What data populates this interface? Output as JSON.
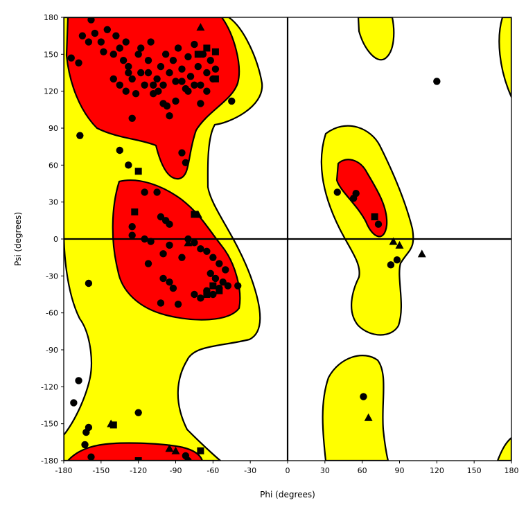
{
  "chart_data": {
    "type": "scatter",
    "title": "",
    "xlabel": "Phi (degrees)",
    "ylabel": "Psi (degrees)",
    "xlim": [
      -180,
      180
    ],
    "ylim": [
      -180,
      180
    ],
    "xticks": [
      -180,
      -150,
      -120,
      -90,
      -60,
      -30,
      0,
      30,
      60,
      90,
      120,
      150,
      180
    ],
    "yticks": [
      180,
      150,
      120,
      90,
      60,
      30,
      0,
      -30,
      -60,
      -90,
      -120,
      -150,
      -180
    ],
    "grid": false,
    "legend": "none",
    "colors": {
      "favoured_region": "#ff0000",
      "allowed_region": "#ffff00",
      "markers": "#000000"
    },
    "series": [
      {
        "marker": "circle",
        "points": [
          [
            -174,
            147
          ],
          [
            -168,
            143
          ],
          [
            -165,
            165
          ],
          [
            -160,
            160
          ],
          [
            -158,
            178
          ],
          [
            -155,
            167
          ],
          [
            -150,
            160
          ],
          [
            -148,
            152
          ],
          [
            -145,
            170
          ],
          [
            -140,
            150
          ],
          [
            -138,
            165
          ],
          [
            -135,
            155
          ],
          [
            -132,
            145
          ],
          [
            -130,
            160
          ],
          [
            -128,
            140
          ],
          [
            -125,
            130
          ],
          [
            -120,
            150
          ],
          [
            -118,
            135
          ],
          [
            -115,
            125
          ],
          [
            -112,
            145
          ],
          [
            -110,
            160
          ],
          [
            -108,
            118
          ],
          [
            -105,
            130
          ],
          [
            -102,
            140
          ],
          [
            -100,
            125
          ],
          [
            -98,
            150
          ],
          [
            -95,
            135
          ],
          [
            -92,
            145
          ],
          [
            -90,
            128
          ],
          [
            -88,
            155
          ],
          [
            -85,
            138
          ],
          [
            -82,
            122
          ],
          [
            -80,
            148
          ],
          [
            -78,
            132
          ],
          [
            -75,
            158
          ],
          [
            -72,
            140
          ],
          [
            -70,
            125
          ],
          [
            -68,
            150
          ],
          [
            -65,
            135
          ],
          [
            -62,
            145
          ],
          [
            -60,
            130
          ],
          [
            -58,
            138
          ],
          [
            -140,
            130
          ],
          [
            -135,
            125
          ],
          [
            -130,
            120
          ],
          [
            -128,
            135
          ],
          [
            -122,
            118
          ],
          [
            -118,
            155
          ],
          [
            -112,
            135
          ],
          [
            -108,
            125
          ],
          [
            -104,
            120
          ],
          [
            -100,
            110
          ],
          [
            -97,
            108
          ],
          [
            -95,
            100
          ],
          [
            -90,
            112
          ],
          [
            -85,
            128
          ],
          [
            -80,
            120
          ],
          [
            -75,
            125
          ],
          [
            -70,
            110
          ],
          [
            -65,
            120
          ],
          [
            -45,
            112
          ],
          [
            -125,
            98
          ],
          [
            -167,
            84
          ],
          [
            -135,
            72
          ],
          [
            -128,
            60
          ],
          [
            -85,
            70
          ],
          [
            -82,
            62
          ],
          [
            -115,
            38
          ],
          [
            -105,
            38
          ],
          [
            -102,
            18
          ],
          [
            -98,
            15
          ],
          [
            -95,
            12
          ],
          [
            -125,
            10
          ],
          [
            -125,
            3
          ],
          [
            -115,
            0
          ],
          [
            -110,
            -2
          ],
          [
            -100,
            -12
          ],
          [
            -95,
            -5
          ],
          [
            -85,
            -15
          ],
          [
            -80,
            0
          ],
          [
            -75,
            -3
          ],
          [
            -70,
            -8
          ],
          [
            -65,
            -10
          ],
          [
            -60,
            -15
          ],
          [
            -55,
            -20
          ],
          [
            -50,
            -25
          ],
          [
            -62,
            -28
          ],
          [
            -58,
            -32
          ],
          [
            -52,
            -35
          ],
          [
            -48,
            -38
          ],
          [
            -65,
            -42
          ],
          [
            -60,
            -45
          ],
          [
            -55,
            -40
          ],
          [
            -70,
            -48
          ],
          [
            -75,
            -45
          ],
          [
            -95,
            -35
          ],
          [
            -92,
            -40
          ],
          [
            -100,
            -32
          ],
          [
            -102,
            -52
          ],
          [
            -88,
            -53
          ],
          [
            -112,
            -20
          ],
          [
            -40,
            -38
          ],
          [
            -160,
            -36
          ],
          [
            -168,
            -115
          ],
          [
            -172,
            -133
          ],
          [
            -120,
            -141
          ],
          [
            -160,
            -153
          ],
          [
            -162,
            -157
          ],
          [
            -163,
            -167
          ],
          [
            -158,
            -177
          ],
          [
            -82,
            -176
          ],
          [
            -80,
            -180
          ],
          [
            40,
            38
          ],
          [
            53,
            33
          ],
          [
            55,
            37
          ],
          [
            73,
            12
          ],
          [
            83,
            -21
          ],
          [
            88,
            -17
          ],
          [
            120,
            128
          ],
          [
            61,
            -128
          ]
        ]
      },
      {
        "marker": "square",
        "points": [
          [
            -72,
            150
          ],
          [
            -65,
            155
          ],
          [
            -58,
            152
          ],
          [
            -58,
            130
          ],
          [
            -120,
            55
          ],
          [
            -123,
            22
          ],
          [
            -75,
            20
          ],
          [
            -60,
            -38
          ],
          [
            -55,
            -42
          ],
          [
            -65,
            -45
          ],
          [
            -140,
            -151
          ],
          [
            -120,
            -180
          ],
          [
            -70,
            -172
          ],
          [
            70,
            18
          ]
        ]
      },
      {
        "marker": "triangle",
        "points": [
          [
            -70,
            172
          ],
          [
            -72,
            20
          ],
          [
            -80,
            -3
          ],
          [
            -142,
            -150
          ],
          [
            -95,
            -170
          ],
          [
            -90,
            -172
          ],
          [
            85,
            -2
          ],
          [
            90,
            -5
          ],
          [
            108,
            -12
          ],
          [
            65,
            -145
          ]
        ]
      }
    ]
  }
}
